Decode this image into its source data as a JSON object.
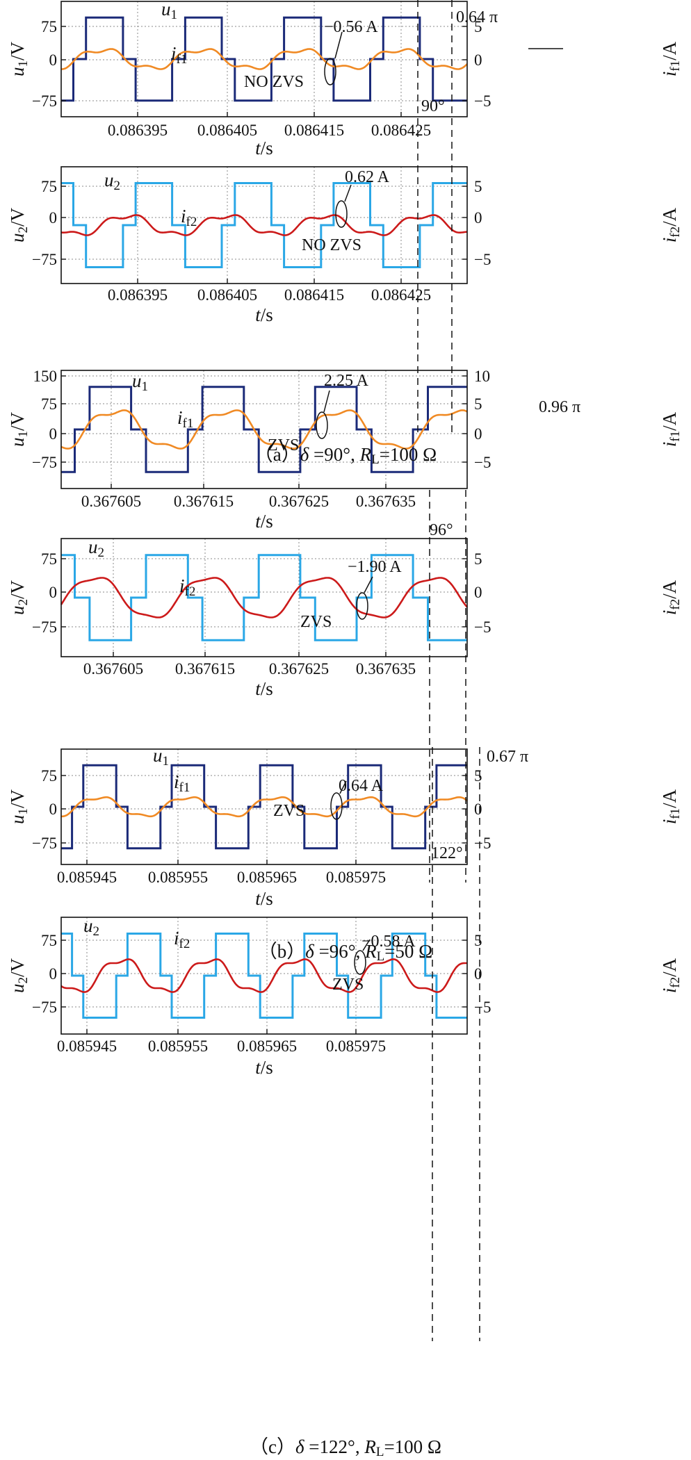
{
  "colors": {
    "u1": "#1b2a78",
    "u2": "#2aa7e6",
    "if1": "#f08a24",
    "if2": "#cc1a1a",
    "grid": "#888888",
    "frame": "#111111"
  },
  "chart_data": [
    {
      "type": "line",
      "panel": "a-top",
      "ylabel_var": "u",
      "ylabel_sub": "1",
      "ylabel_unit": "/V",
      "y2label_var": "i",
      "y2label_sub": "f1",
      "y2label_unit": "/A",
      "xlabel_var": "t",
      "xlabel_unit": "/s",
      "yticks": [
        "75",
        "0",
        "−75"
      ],
      "y2ticks": [
        "5",
        "0",
        "−5"
      ],
      "xticks": [
        "0.086395",
        "0.086405",
        "0.086415",
        "0.086425"
      ],
      "ylim": [
        -120,
        120
      ],
      "y2lim": [
        -8,
        8
      ],
      "grid": true,
      "series": [
        {
          "name": "u1",
          "values": [
            -100,
            0,
            100,
            0,
            -100,
            0,
            100,
            0,
            -100,
            0,
            100,
            0,
            -100,
            0,
            100,
            0,
            -100
          ]
        },
        {
          "name": "if1",
          "values": [
            -1.3,
            0.2,
            2.0,
            0.5,
            -1.3,
            0.2,
            2.0,
            0.5,
            -1.3,
            0.2,
            2.0,
            0.5,
            -1.3,
            0.2,
            2.0,
            0.5,
            -1.3
          ]
        }
      ],
      "annotations": [
        "0.64 π",
        "−0.56 A",
        "NO ZVS",
        "90°"
      ]
    },
    {
      "type": "line",
      "panel": "a-bottom",
      "ylabel_var": "u",
      "ylabel_sub": "2",
      "ylabel_unit": "/V",
      "y2label_var": "i",
      "y2label_sub": "f2",
      "y2label_unit": "/A",
      "xlabel_var": "t",
      "xlabel_unit": "/s",
      "yticks": [
        "75",
        "0",
        "−75"
      ],
      "y2ticks": [
        "5",
        "0",
        "−5"
      ],
      "xticks": [
        "0.086395",
        "0.086405",
        "0.086415",
        "0.086425"
      ],
      "ylim": [
        -120,
        120
      ],
      "y2lim": [
        -8,
        8
      ],
      "grid": true,
      "series": [
        {
          "name": "u2",
          "values": [
            0,
            -100,
            0,
            100,
            0,
            -100,
            0,
            100,
            0,
            -100,
            0,
            100,
            0,
            -100,
            0,
            100,
            0
          ]
        },
        {
          "name": "if2",
          "values": [
            0.5,
            -1.3,
            0.2,
            2.0,
            0.5,
            -1.3,
            0.2,
            2.0,
            0.5,
            -1.3,
            0.2,
            2.0,
            0.5,
            -1.3,
            0.2,
            2.0,
            0.5
          ]
        }
      ],
      "annotations": [
        "0.62 A",
        "NO ZVS"
      ]
    },
    {
      "type": "line",
      "panel": "b-top",
      "ylabel_var": "u",
      "ylabel_sub": "1",
      "ylabel_unit": "/V",
      "y2label_var": "i",
      "y2label_sub": "f1",
      "y2label_unit": "/A",
      "xlabel_var": "t",
      "xlabel_unit": "/s",
      "yticks": [
        "150",
        "75",
        "0",
        "−75"
      ],
      "y2ticks": [
        "10",
        "5",
        "0",
        "−5"
      ],
      "xticks": [
        "0.367605",
        "0.367615",
        "0.367625",
        "0.367635"
      ],
      "ylim": [
        -110,
        160
      ],
      "y2lim": [
        -7.3,
        10.7
      ],
      "grid": true,
      "series": [
        {
          "name": "u1",
          "values": [
            -100,
            100,
            0,
            -100,
            100,
            0,
            -100,
            100,
            0,
            -100,
            100,
            0,
            -100
          ]
        },
        {
          "name": "if1",
          "values": [
            -1.5,
            2.5,
            1.5,
            -2.0,
            2.5,
            1.5,
            -2.0,
            2.5,
            1.5,
            -2.0,
            2.5,
            1.5,
            -1.5
          ]
        }
      ],
      "annotations": [
        "0.96 π",
        "2.25 A",
        "ZVS"
      ]
    },
    {
      "type": "line",
      "panel": "b-bottom",
      "ylabel_var": "u",
      "ylabel_sub": "2",
      "ylabel_unit": "/V",
      "y2label_var": "i",
      "y2label_sub": "f2",
      "y2label_unit": "/A",
      "xlabel_var": "t",
      "xlabel_unit": "/s",
      "yticks": [
        "75",
        "0",
        "−75"
      ],
      "y2ticks": [
        "5",
        "0",
        "−5"
      ],
      "xticks": [
        "0.367605",
        "0.367615",
        "0.367625",
        "0.367635"
      ],
      "ylim": [
        -100,
        110
      ],
      "y2lim": [
        -6.7,
        7.3
      ],
      "grid": true,
      "series": [
        {
          "name": "u2",
          "values": [
            -80,
            80,
            0,
            -80,
            80,
            0,
            -80,
            80,
            0,
            -80,
            80,
            0,
            -80
          ]
        },
        {
          "name": "if2",
          "values": [
            -1.0,
            2.8,
            1.0,
            -1.9,
            2.8,
            1.0,
            -1.9,
            2.8,
            1.0,
            -1.9,
            2.8,
            1.0,
            -1.0
          ]
        }
      ],
      "annotations": [
        "96°",
        "−1.90 A",
        "ZVS"
      ]
    },
    {
      "type": "line",
      "panel": "c-top",
      "ylabel_var": "u",
      "ylabel_sub": "1",
      "ylabel_unit": "/V",
      "y2label_var": "i",
      "y2label_sub": "f1",
      "y2label_unit": "/A",
      "xlabel_var": "t",
      "xlabel_unit": "/s",
      "yticks": [
        "75",
        "0",
        "−75"
      ],
      "y2ticks": [
        "5",
        "0",
        "−5"
      ],
      "xticks": [
        "0.085945",
        "0.085955",
        "0.085965",
        "0.085975"
      ],
      "ylim": [
        -120,
        120
      ],
      "y2lim": [
        -8,
        8
      ],
      "grid": true,
      "series": [
        {
          "name": "u1",
          "values": [
            -100,
            0,
            100,
            0,
            -100,
            0,
            100,
            0,
            -100,
            0,
            100,
            0,
            -100,
            0,
            100,
            0,
            -100
          ]
        },
        {
          "name": "if1",
          "values": [
            -1.2,
            0.5,
            2.0,
            0.3,
            -1.2,
            0.5,
            2.0,
            0.3,
            -1.2,
            0.5,
            2.0,
            0.3,
            -1.2,
            0.5,
            2.0,
            0.3,
            -1.2
          ]
        }
      ],
      "annotations": [
        "0.67 π",
        "0.64 A",
        "ZVS",
        "122°"
      ]
    },
    {
      "type": "line",
      "panel": "c-bottom",
      "ylabel_var": "u",
      "ylabel_sub": "2",
      "ylabel_unit": "/V",
      "y2label_var": "i",
      "y2label_sub": "f2",
      "y2label_unit": "/A",
      "xlabel_var": "t",
      "xlabel_unit": "/s",
      "yticks": [
        "75",
        "0",
        "−75"
      ],
      "y2ticks": [
        "5",
        "0",
        "−5"
      ],
      "xticks": [
        "0.085945",
        "0.085955",
        "0.085965",
        "0.085975"
      ],
      "ylim": [
        -120,
        120
      ],
      "y2lim": [
        -8,
        8
      ],
      "grid": true,
      "series": [
        {
          "name": "u2",
          "values": [
            0,
            -100,
            0,
            100,
            0,
            -100,
            0,
            100,
            0,
            -100,
            0,
            100,
            0,
            -100,
            0,
            100,
            0
          ]
        },
        {
          "name": "if2",
          "values": [
            -0.6,
            -1.8,
            0.5,
            2.3,
            -0.6,
            -1.8,
            0.5,
            2.3,
            -0.6,
            -1.8,
            0.5,
            2.3,
            -0.6,
            -1.8,
            0.5,
            2.3,
            -0.6
          ]
        }
      ],
      "annotations": [
        "−0.58 A",
        "ZVS"
      ]
    }
  ],
  "captions": {
    "a_pre": "（a）",
    "a_greek": "δ",
    "a_mid": " =90°, ",
    "a_R": "R",
    "a_Rsub": "L",
    "a_post": "=100 Ω",
    "b_pre": "（b）",
    "b_greek": "δ",
    "b_mid": " =96°, ",
    "b_R": "R",
    "b_Rsub": "L",
    "b_post": "=50 Ω",
    "c_pre": "（c）",
    "c_greek": "δ",
    "c_mid": " =122°, ",
    "c_R": "R",
    "c_Rsub": "L",
    "c_post": "=100 Ω"
  }
}
